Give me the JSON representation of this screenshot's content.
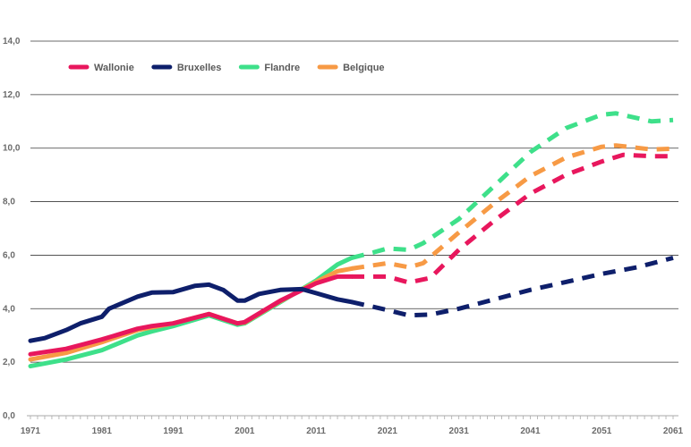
{
  "chart_data": {
    "type": "line",
    "title": "",
    "xlabel": "",
    "ylabel": "",
    "xlim": [
      1971,
      2061
    ],
    "ylim": [
      0,
      14
    ],
    "x_ticks": [
      1971,
      1981,
      1991,
      2001,
      2011,
      2021,
      2031,
      2041,
      2051,
      2061
    ],
    "y_ticks": [
      "0,0",
      "2,0",
      "4,0",
      "6,0",
      "8,0",
      "10,0",
      "12,0",
      "14,0"
    ],
    "y_tick_values": [
      0,
      2,
      4,
      6,
      8,
      10,
      12,
      14
    ],
    "grid": "horizontal",
    "legend_position": "top-left",
    "projection_start": 2016,
    "series": [
      {
        "name": "Wallonie",
        "color": "#e8175d",
        "points": [
          [
            1971,
            2.3
          ],
          [
            1976,
            2.5
          ],
          [
            1981,
            2.85
          ],
          [
            1986,
            3.25
          ],
          [
            1988,
            3.35
          ],
          [
            1991,
            3.45
          ],
          [
            1996,
            3.8
          ],
          [
            2000,
            3.45
          ],
          [
            2001,
            3.5
          ],
          [
            2006,
            4.3
          ],
          [
            2011,
            4.95
          ],
          [
            2014,
            5.2
          ],
          [
            2016,
            5.2
          ],
          [
            2021,
            5.2
          ],
          [
            2024,
            4.98
          ],
          [
            2027,
            5.15
          ],
          [
            2031,
            6.2
          ],
          [
            2036,
            7.3
          ],
          [
            2041,
            8.3
          ],
          [
            2046,
            9.0
          ],
          [
            2051,
            9.5
          ],
          [
            2054,
            9.75
          ],
          [
            2058,
            9.7
          ],
          [
            2061,
            9.7
          ]
        ]
      },
      {
        "name": "Bruxelles",
        "color": "#0e1f6b",
        "points": [
          [
            1971,
            2.8
          ],
          [
            1973,
            2.9
          ],
          [
            1976,
            3.2
          ],
          [
            1978,
            3.45
          ],
          [
            1981,
            3.7
          ],
          [
            1982,
            4.0
          ],
          [
            1986,
            4.45
          ],
          [
            1988,
            4.6
          ],
          [
            1991,
            4.62
          ],
          [
            1994,
            4.85
          ],
          [
            1996,
            4.9
          ],
          [
            1998,
            4.7
          ],
          [
            2000,
            4.3
          ],
          [
            2001,
            4.3
          ],
          [
            2003,
            4.55
          ],
          [
            2006,
            4.7
          ],
          [
            2009,
            4.73
          ],
          [
            2011,
            4.58
          ],
          [
            2014,
            4.35
          ],
          [
            2016,
            4.25
          ],
          [
            2021,
            3.95
          ],
          [
            2024,
            3.75
          ],
          [
            2027,
            3.78
          ],
          [
            2031,
            4.0
          ],
          [
            2036,
            4.35
          ],
          [
            2041,
            4.7
          ],
          [
            2046,
            5.0
          ],
          [
            2051,
            5.3
          ],
          [
            2056,
            5.55
          ],
          [
            2061,
            5.9
          ]
        ]
      },
      {
        "name": "Flandre",
        "color": "#3ee08a",
        "points": [
          [
            1971,
            1.85
          ],
          [
            1976,
            2.1
          ],
          [
            1981,
            2.45
          ],
          [
            1986,
            3.0
          ],
          [
            1988,
            3.15
          ],
          [
            1991,
            3.35
          ],
          [
            1996,
            3.75
          ],
          [
            2000,
            3.4
          ],
          [
            2001,
            3.45
          ],
          [
            2006,
            4.25
          ],
          [
            2011,
            5.05
          ],
          [
            2014,
            5.65
          ],
          [
            2016,
            5.9
          ],
          [
            2019,
            6.1
          ],
          [
            2021,
            6.25
          ],
          [
            2024,
            6.2
          ],
          [
            2026,
            6.45
          ],
          [
            2031,
            7.35
          ],
          [
            2036,
            8.6
          ],
          [
            2041,
            9.85
          ],
          [
            2046,
            10.75
          ],
          [
            2051,
            11.25
          ],
          [
            2053,
            11.3
          ],
          [
            2058,
            11.0
          ],
          [
            2061,
            11.05
          ]
        ]
      },
      {
        "name": "Belgique",
        "color": "#f79a45",
        "points": [
          [
            1971,
            2.1
          ],
          [
            1976,
            2.35
          ],
          [
            1981,
            2.75
          ],
          [
            1986,
            3.2
          ],
          [
            1988,
            3.3
          ],
          [
            1991,
            3.45
          ],
          [
            1996,
            3.8
          ],
          [
            2000,
            3.45
          ],
          [
            2001,
            3.48
          ],
          [
            2006,
            4.28
          ],
          [
            2011,
            5.0
          ],
          [
            2014,
            5.4
          ],
          [
            2016,
            5.5
          ],
          [
            2021,
            5.7
          ],
          [
            2024,
            5.55
          ],
          [
            2026,
            5.7
          ],
          [
            2031,
            6.85
          ],
          [
            2036,
            7.95
          ],
          [
            2041,
            8.95
          ],
          [
            2046,
            9.65
          ],
          [
            2051,
            10.05
          ],
          [
            2053,
            10.1
          ],
          [
            2058,
            9.95
          ],
          [
            2061,
            9.98
          ]
        ]
      }
    ]
  }
}
